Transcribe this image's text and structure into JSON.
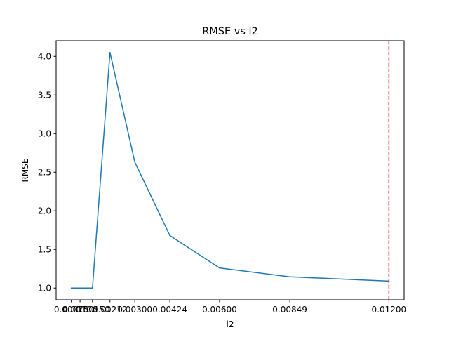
{
  "chart_data": {
    "type": "line",
    "title": "RMSE vs l2",
    "xlabel": "l2",
    "ylabel": "RMSE",
    "x": [
      0.00075,
      0.00106,
      0.0015,
      0.00212,
      0.003,
      0.00424,
      0.006,
      0.00849,
      0.012
    ],
    "y": [
      1.0,
      1.0,
      1.0,
      4.05,
      2.63,
      1.68,
      1.26,
      1.145,
      1.09
    ],
    "x_tick_labels": [
      "0.00075",
      "0.00106",
      "0.00150",
      "0.00212",
      "0.00300",
      "0.00424",
      "0.00600",
      "0.00849",
      "0.01200"
    ],
    "y_ticks": [
      1.0,
      1.5,
      2.0,
      2.5,
      3.0,
      3.5,
      4.0
    ],
    "y_tick_labels": [
      "1.0",
      "1.5",
      "2.0",
      "2.5",
      "3.0",
      "3.5",
      "4.0"
    ],
    "xlim": [
      0.0002125,
      0.0125375
    ],
    "ylim": [
      0.8475,
      4.2025
    ],
    "reference_line": {
      "x": 0.012,
      "orientation": "vertical",
      "style": "dashed"
    },
    "grid": false,
    "colors": {
      "series": "#1f77b4",
      "reference": "#d62728",
      "axes": "#000000"
    }
  }
}
